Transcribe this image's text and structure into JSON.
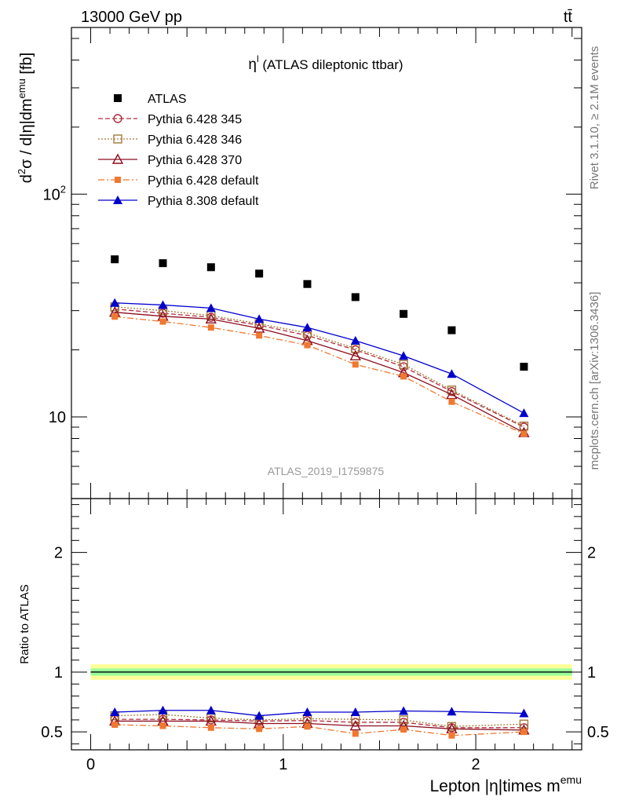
{
  "header": {
    "energy_label": "13000 GeV pp",
    "process_label": "tt̄"
  },
  "side_labels": {
    "rivet": "Rivet 3.1.10, ≥ 2.1M events",
    "mcplots": "mcplots.cern.ch [arXiv:1306.3436]"
  },
  "watermark": "ATLAS_2019_I1759875",
  "chart_data": [
    {
      "type": "scatter",
      "title_main": "η",
      "title_sup": "l",
      "title_rest": " (ATLAS dileptonic ttbar)",
      "ylabel": "d²σ / d|η|dm^emu [fb]",
      "ylabel_parts": {
        "d": "d",
        "sup2": "2",
        "sigma": "σ / d|η|dm",
        "sup_emu": "emu",
        "unit": " [fb]"
      },
      "yscale": "log",
      "xlim": [
        -0.1,
        2.55
      ],
      "ylim": [
        4.3,
        560
      ],
      "x_ticks": [
        0,
        1,
        2
      ],
      "y_ticks": [
        {
          "value": 10,
          "label": "10"
        },
        {
          "value": 100,
          "label": "10",
          "sup": "2"
        }
      ],
      "legend_position": "top-left",
      "x": [
        0.125,
        0.375,
        0.625,
        0.875,
        1.125,
        1.375,
        1.625,
        1.875,
        2.25
      ],
      "series": [
        {
          "name": "ATLAS",
          "color": "#000000",
          "marker": "square-filled",
          "line": "none",
          "values": [
            51,
            49,
            47,
            44,
            39.5,
            34.5,
            29,
            24.5,
            16.8
          ]
        },
        {
          "name": "Pythia 6.428 345",
          "color": "#b22a3c",
          "marker": "circle-open",
          "line": "dashed",
          "values": [
            30.5,
            29.2,
            28.0,
            25.8,
            23.2,
            20.0,
            16.8,
            13.0,
            9.0
          ]
        },
        {
          "name": "Pythia 6.428 346",
          "color": "#a07a3a",
          "marker": "square-open",
          "line": "dotted",
          "values": [
            31.2,
            30.0,
            28.5,
            26.2,
            23.8,
            20.3,
            17.2,
            13.2,
            9.1
          ]
        },
        {
          "name": "Pythia 6.428 370",
          "color": "#8b0f1f",
          "marker": "triangle-open",
          "line": "solid",
          "values": [
            29.5,
            28.3,
            27.5,
            25.0,
            22.0,
            18.8,
            15.8,
            12.6,
            8.5
          ]
        },
        {
          "name": "Pythia 6.428 default",
          "color": "#f07830",
          "marker": "square-filled-small",
          "line": "dashdot",
          "values": [
            28.2,
            26.8,
            25.2,
            23.2,
            21.0,
            17.2,
            15.2,
            11.7,
            8.4
          ]
        },
        {
          "name": "Pythia 8.308 default",
          "color": "#0000cc",
          "marker": "triangle-filled",
          "line": "solid",
          "values": [
            32.5,
            31.8,
            30.8,
            27.5,
            25.2,
            22.0,
            18.8,
            15.6,
            10.4
          ]
        }
      ]
    },
    {
      "type": "line",
      "ylabel": "Ratio to ATLAS",
      "xlabel_main": "Lepton |η|times m",
      "xlabel_sup": "emu",
      "xlim": [
        -0.1,
        2.55
      ],
      "ylim": [
        0.35,
        2.45
      ],
      "x_ticks": [
        0,
        1,
        2
      ],
      "y_ticks": [
        {
          "value": 0.5,
          "label": "0.5"
        },
        {
          "value": 1,
          "label": "1"
        },
        {
          "value": 2,
          "label": "2"
        }
      ],
      "reference_line": 1.0,
      "uncertainty_band_inner": [
        0.97,
        1.03
      ],
      "uncertainty_band_outer": [
        0.935,
        1.065
      ],
      "band_colors": {
        "inner": "#99ff99",
        "outer": "#ffff99"
      },
      "x": [
        0.125,
        0.375,
        0.625,
        0.875,
        1.125,
        1.375,
        1.625,
        1.875,
        2.25
      ],
      "series": [
        {
          "name": "Pythia 6.428 345",
          "values": [
            0.605,
            0.605,
            0.6,
            0.59,
            0.595,
            0.58,
            0.58,
            0.535,
            0.535
          ]
        },
        {
          "name": "Pythia 6.428 346",
          "values": [
            0.635,
            0.645,
            0.615,
            0.6,
            0.61,
            0.605,
            0.6,
            0.545,
            0.565
          ]
        },
        {
          "name": "Pythia 6.428 370",
          "values": [
            0.59,
            0.59,
            0.59,
            0.57,
            0.57,
            0.55,
            0.55,
            0.525,
            0.515
          ]
        },
        {
          "name": "Pythia 6.428 default",
          "values": [
            0.56,
            0.55,
            0.535,
            0.525,
            0.545,
            0.485,
            0.52,
            0.47,
            0.5
          ]
        },
        {
          "name": "Pythia 8.308 default",
          "values": [
            0.665,
            0.68,
            0.68,
            0.635,
            0.665,
            0.665,
            0.675,
            0.67,
            0.655
          ],
          "errors": [
            0.0,
            0.0,
            0.0,
            0.0,
            0.0,
            0.0,
            0.02,
            0.02,
            0.0
          ]
        }
      ]
    }
  ]
}
